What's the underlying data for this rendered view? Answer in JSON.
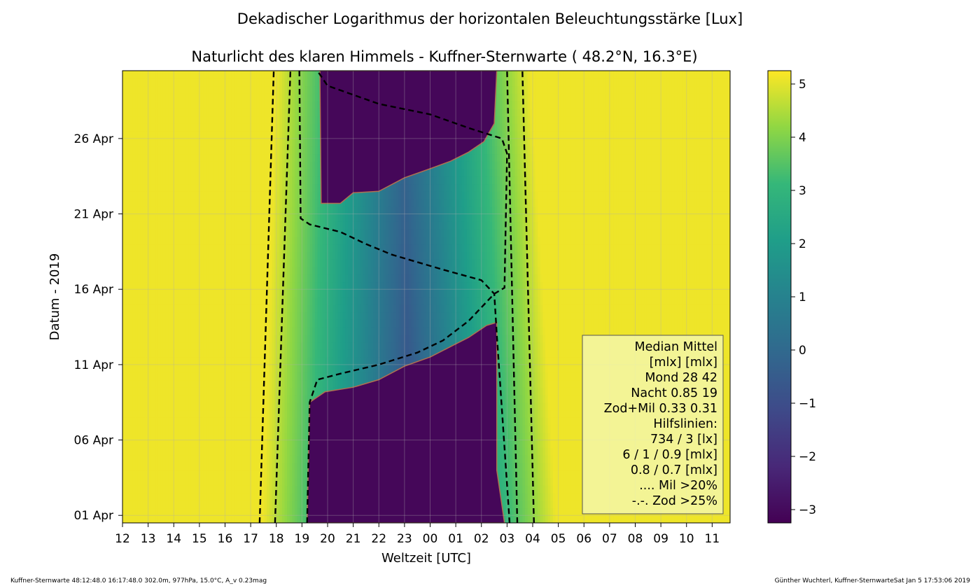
{
  "chart_data": {
    "type": "heatmap",
    "suptitle": "Dekadischer Logarithmus der horizontalen Beleuchtungsstärke [Lux]",
    "title": "Naturlicht des klaren Himmels - Kuffner-Sternwarte ( 48.2°N, 16.3°E)",
    "xlabel": "Weltzeit [UTC]",
    "ylabel": "Datum - 2019",
    "x_ticks": [
      "12",
      "13",
      "14",
      "15",
      "16",
      "17",
      "18",
      "19",
      "20",
      "21",
      "22",
      "23",
      "00",
      "01",
      "02",
      "03",
      "04",
      "05",
      "06",
      "07",
      "08",
      "09",
      "10",
      "11"
    ],
    "y_ticks": [
      "01 Apr",
      "06 Apr",
      "11 Apr",
      "16 Apr",
      "21 Apr",
      "26 Apr"
    ],
    "xlim_hours_after_12utc": [
      0,
      23.7
    ],
    "ylim_day_of_april": [
      0.5,
      30.5
    ],
    "grid": true,
    "colorscale": "viridis",
    "colorbar": {
      "ticks": [
        "5",
        "4",
        "3",
        "2",
        "1",
        "0",
        "−1",
        "−2",
        "−3"
      ],
      "values": [
        5,
        4,
        3,
        2,
        1,
        0,
        -1,
        -2,
        -3
      ],
      "range": [
        -3.25,
        5.25
      ]
    },
    "sunset_utc_hours_after_12": {
      "day_1": 5.5,
      "day_30": 6.0
    },
    "sunrise_utc_hours_after_12": {
      "day_1": 16.9,
      "day_30": 15.9
    },
    "dashed_twilight_lines": [
      {
        "name": "734 lx evening",
        "points": [
          [
            5.35,
            0.5
          ],
          [
            5.9,
            30.5
          ]
        ]
      },
      {
        "name": "3 lx evening",
        "points": [
          [
            5.95,
            0.5
          ],
          [
            6.55,
            30.5
          ]
        ]
      },
      {
        "name": "3 lx morning",
        "points": [
          [
            15.4,
            0.5
          ],
          [
            15.0,
            30.5
          ]
        ]
      },
      {
        "name": "734 lx morning",
        "points": [
          [
            16.05,
            0.5
          ],
          [
            15.6,
            30.5
          ]
        ]
      }
    ],
    "moon_boundary_lines": [
      {
        "name": "evening moon",
        "points": [
          [
            6.9,
            30.5
          ],
          [
            6.95,
            20.7
          ],
          [
            7.3,
            20.3
          ],
          [
            8.5,
            19.8
          ],
          [
            9.5,
            19.0
          ],
          [
            10.5,
            18.3
          ],
          [
            12.5,
            17.3
          ],
          [
            14.0,
            16.6
          ],
          [
            14.5,
            15.7
          ],
          [
            14.6,
            13.0
          ],
          [
            15.0,
            3.0
          ],
          [
            15.1,
            0.5
          ]
        ]
      },
      {
        "name": "morning moon",
        "points": [
          [
            7.2,
            0.5
          ],
          [
            7.3,
            8.5
          ],
          [
            7.6,
            10.0
          ],
          [
            8.5,
            10.4
          ],
          [
            10.0,
            11.0
          ],
          [
            11.5,
            11.8
          ],
          [
            12.5,
            12.6
          ],
          [
            13.5,
            13.9
          ],
          [
            14.5,
            15.7
          ],
          [
            14.9,
            16.1
          ],
          [
            15.0,
            25.0
          ],
          [
            14.8,
            26.0
          ],
          [
            13.5,
            26.7
          ],
          [
            12.0,
            27.6
          ],
          [
            10.0,
            28.3
          ],
          [
            8.0,
            29.5
          ],
          [
            7.6,
            30.5
          ]
        ]
      }
    ],
    "dark_regions": [
      {
        "name": "early april night",
        "points": [
          [
            7.2,
            0.5
          ],
          [
            7.3,
            8.5
          ],
          [
            7.9,
            9.2
          ],
          [
            9.0,
            9.5
          ],
          [
            10.0,
            10.0
          ],
          [
            11.0,
            10.9
          ],
          [
            12.0,
            11.5
          ],
          [
            12.8,
            12.2
          ],
          [
            13.5,
            12.8
          ],
          [
            14.2,
            13.6
          ],
          [
            14.6,
            13.8
          ],
          [
            14.6,
            4.0
          ],
          [
            14.9,
            0.5
          ]
        ]
      },
      {
        "name": "late april night",
        "points": [
          [
            7.7,
            30.5
          ],
          [
            7.75,
            21.7
          ],
          [
            8.5,
            21.7
          ],
          [
            9.0,
            22.4
          ],
          [
            10.0,
            22.5
          ],
          [
            11.0,
            23.4
          ],
          [
            12.0,
            24.0
          ],
          [
            12.8,
            24.5
          ],
          [
            13.5,
            25.1
          ],
          [
            14.1,
            25.8
          ],
          [
            14.5,
            27.0
          ],
          [
            14.6,
            30.5
          ]
        ]
      }
    ],
    "legend": [
      "Median Mittel",
      "[mlx]  [mlx]",
      "Mond   28  42",
      "Nacht 0.85  19",
      "Zod+Mil 0.33  0.31",
      "Hilfslinien:",
      "734 / 3  [lx]",
      "6 /  1 / 0.9 [mlx]",
      "0.8 / 0.7 [mlx]",
      ".... Mil >20%",
      "-.-. Zod >25%"
    ],
    "legend_position": "lower-right"
  },
  "footer": {
    "left": "Kuffner-Sternwarte 48:12:48.0 16:17:48.0 302.0m,  977hPa, 15.0°C, A_v 0.23mag",
    "right": "Günther Wuchterl, Kuffner-SternwarteSat Jan  5 17:53:06 2019"
  }
}
